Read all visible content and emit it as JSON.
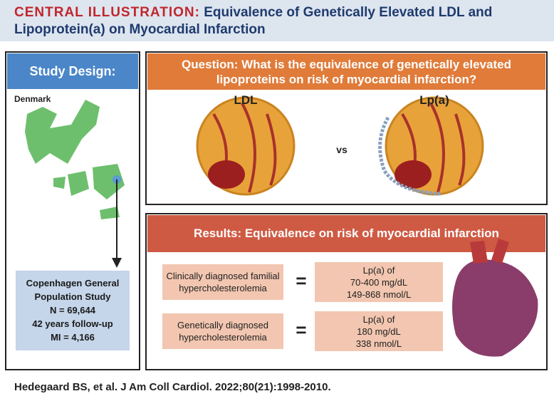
{
  "header": {
    "label": "CENTRAL ILLUSTRATION:",
    "title": "Equivalence of Genetically Elevated LDL and Lipoprotein(a) on Myocardial Infarction"
  },
  "study_design": {
    "title": "Study Design:",
    "map_label": "Denmark",
    "cohort_lines": [
      "Copenhagen General",
      "Population Study",
      "N = 69,644",
      "42 years follow-up",
      "MI = 4,166"
    ]
  },
  "question": {
    "lines": [
      "Question: What is the equivalence of genetically elevated",
      "lipoproteins on risk of myocardial infarction?"
    ],
    "left_label": "LDL",
    "middle_label": "vs",
    "right_label": "Lp(a)"
  },
  "results": {
    "title": "Results: Equivalence on risk of myocardial infarction",
    "rows": [
      {
        "left": [
          "Clinically diagnosed familial",
          "hypercholesterolemia"
        ],
        "relation": "=",
        "right": [
          "Lp(a) of",
          "70-400 mg/dL",
          "149-868 nmol/L"
        ]
      },
      {
        "left": [
          "Genetically diagnosed",
          "hypercholesterolemia"
        ],
        "relation": "=",
        "right": [
          "Lp(a) of",
          "180 mg/dL",
          "338 nmol/L"
        ]
      }
    ]
  },
  "citation": "Hedegaard BS, et al. J Am Coll Cardiol. 2022;80(21):1998-2010."
}
